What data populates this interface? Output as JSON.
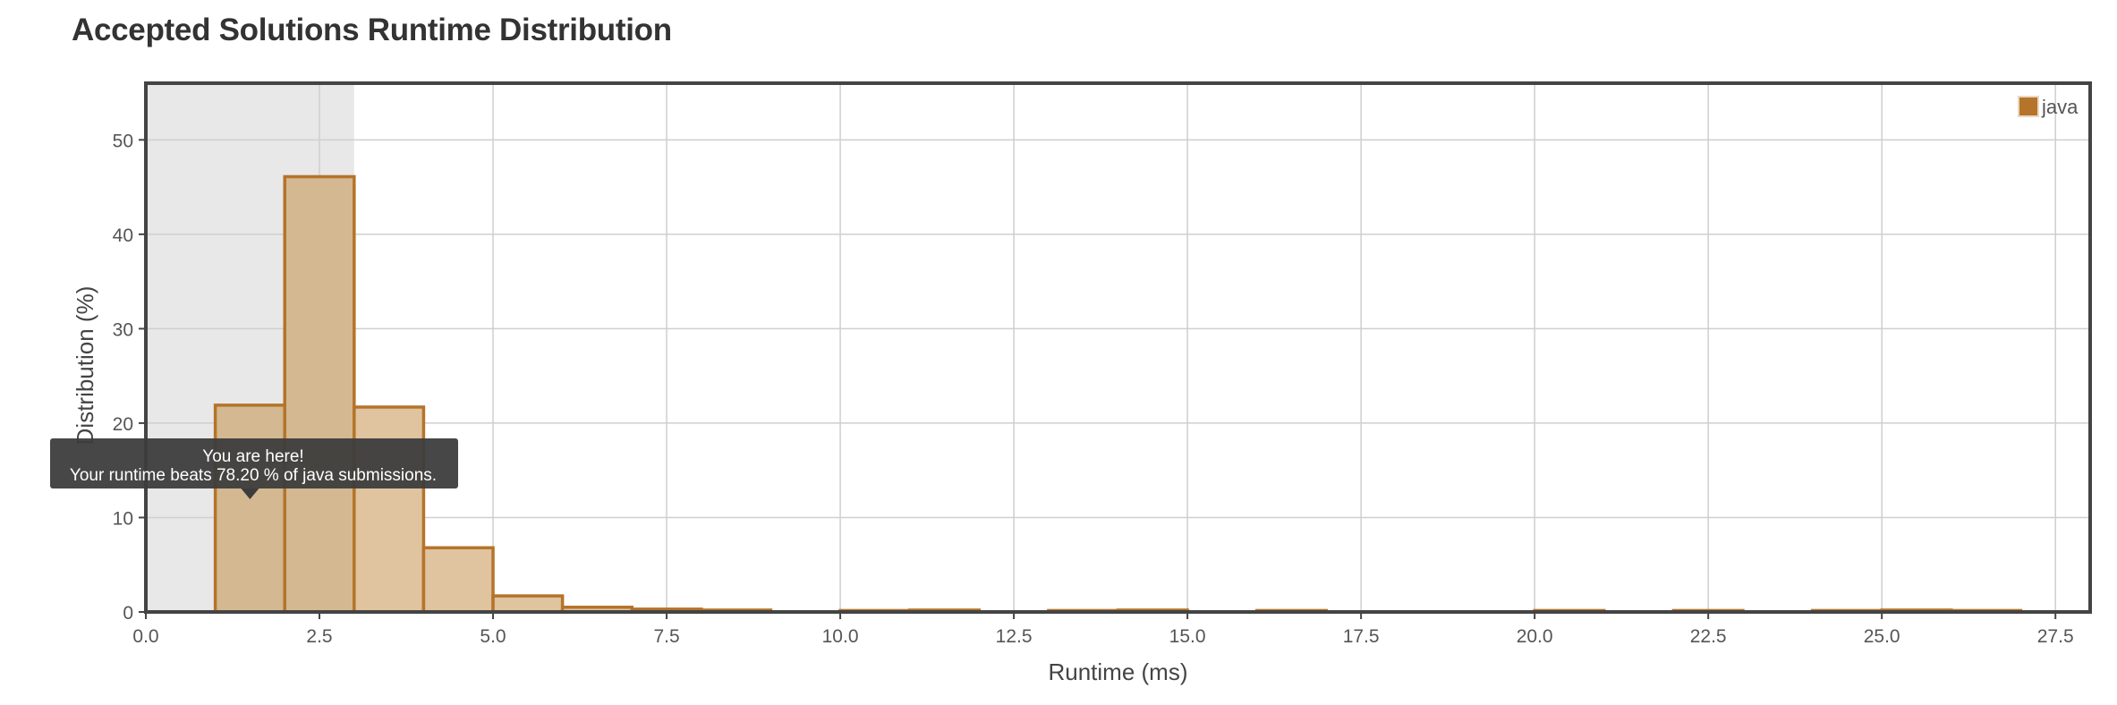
{
  "page": {
    "title": "Accepted Solutions Runtime Distribution"
  },
  "chart_data": {
    "type": "bar",
    "xlabel": "Runtime (ms)",
    "ylabel": "Distribution (%)",
    "xlim": [
      0,
      28
    ],
    "ylim": [
      0,
      56
    ],
    "x_ticks": [
      "0.0",
      "2.5",
      "5.0",
      "7.5",
      "10.0",
      "12.5",
      "15.0",
      "17.5",
      "20.0",
      "22.5",
      "25.0",
      "27.5"
    ],
    "y_ticks": [
      "0",
      "10",
      "20",
      "30",
      "40",
      "50"
    ],
    "grid": true,
    "legend": {
      "placement": "top-right",
      "entries": [
        "java"
      ]
    },
    "series": [
      {
        "name": "java",
        "color": "#b5742a",
        "fill": "#e0c39f",
        "highlight_fill": "#d3b891",
        "bins": [
          {
            "x_start": 1,
            "x_end": 2,
            "value": 21.9
          },
          {
            "x_start": 2,
            "x_end": 3,
            "value": 46.1
          },
          {
            "x_start": 3,
            "x_end": 4,
            "value": 21.7
          },
          {
            "x_start": 4,
            "x_end": 5,
            "value": 6.8
          },
          {
            "x_start": 5,
            "x_end": 6,
            "value": 1.7
          },
          {
            "x_start": 6,
            "x_end": 7,
            "value": 0.5
          },
          {
            "x_start": 7,
            "x_end": 8,
            "value": 0.3
          },
          {
            "x_start": 8,
            "x_end": 9,
            "value": 0.2
          },
          {
            "x_start": 10,
            "x_end": 11,
            "value": 0.15
          },
          {
            "x_start": 11,
            "x_end": 12,
            "value": 0.2
          },
          {
            "x_start": 13,
            "x_end": 14,
            "value": 0.15
          },
          {
            "x_start": 14,
            "x_end": 15,
            "value": 0.2
          },
          {
            "x_start": 16,
            "x_end": 17,
            "value": 0.15
          },
          {
            "x_start": 20,
            "x_end": 21,
            "value": 0.15
          },
          {
            "x_start": 22,
            "x_end": 23,
            "value": 0.15
          },
          {
            "x_start": 24,
            "x_end": 25,
            "value": 0.15
          },
          {
            "x_start": 25,
            "x_end": 26,
            "value": 0.2
          },
          {
            "x_start": 26,
            "x_end": 27,
            "value": 0.15
          }
        ]
      }
    ],
    "highlight_region": {
      "x_start": 0,
      "x_end": 3,
      "color": "#e8e8e8"
    },
    "tooltip": {
      "line1": "You are here!",
      "line2": "Your runtime beats 78.20 % of java submissions."
    }
  }
}
